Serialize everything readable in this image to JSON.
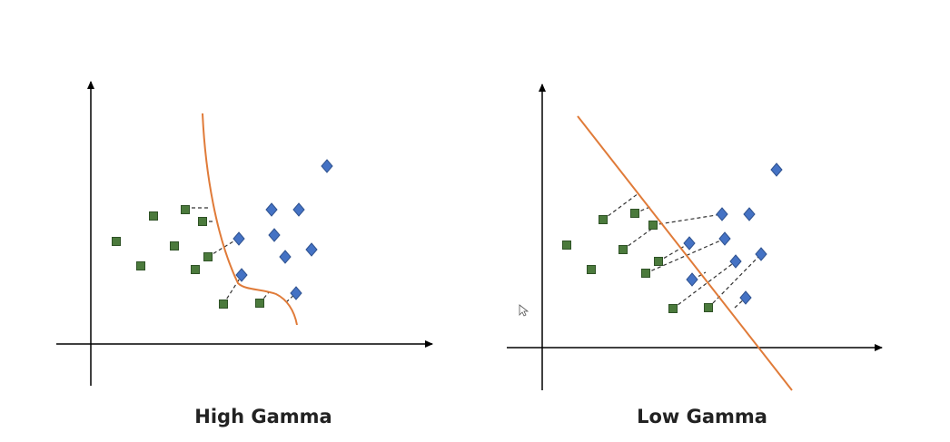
{
  "diagrams": [
    {
      "id": "high",
      "caption": "High Gamma",
      "boundary_type": "curve"
    },
    {
      "id": "low",
      "caption": "Low Gamma",
      "boundary_type": "line"
    }
  ],
  "colors": {
    "square_fill": "#4b7a3c",
    "square_stroke": "#2f5226",
    "diamond_fill": "#4472c4",
    "diamond_stroke": "#2f528f",
    "boundary": "#e07b39",
    "axis": "#000000",
    "dashed": "#333333"
  },
  "icons": {
    "class_a": "green-square-marker",
    "class_b": "blue-diamond-marker",
    "cursor": "arrow-cursor-icon"
  }
}
